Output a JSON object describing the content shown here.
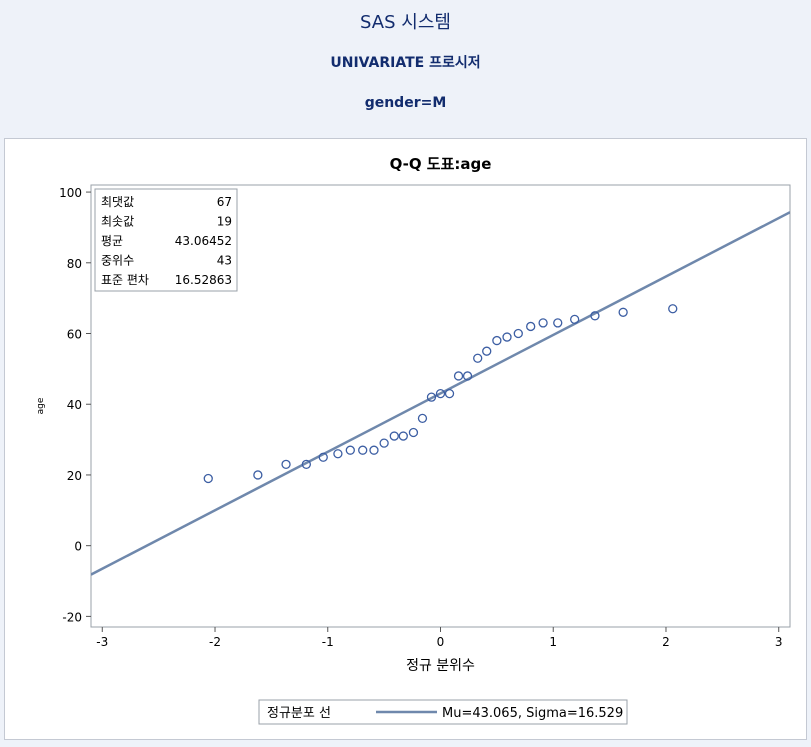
{
  "header": {
    "system": "SAS 시스템",
    "procedure": "UNIVARIATE 프로시저",
    "group": "gender=M"
  },
  "chart_data": {
    "type": "scatter",
    "title": "Q-Q 도표:age",
    "xlabel": "정규 분위수",
    "ylabel": "age",
    "xlim": [
      -3.1,
      3.1
    ],
    "ylim": [
      -23,
      102
    ],
    "xticks": [
      -3,
      -2,
      -1,
      0,
      1,
      2,
      3
    ],
    "yticks": [
      -20,
      0,
      20,
      40,
      60,
      80,
      100
    ],
    "points": [
      [
        -2.06,
        19
      ],
      [
        -1.62,
        20
      ],
      [
        -1.37,
        23
      ],
      [
        -1.19,
        23
      ],
      [
        -1.04,
        25
      ],
      [
        -0.91,
        26
      ],
      [
        -0.8,
        27
      ],
      [
        -0.69,
        27
      ],
      [
        -0.59,
        27
      ],
      [
        -0.5,
        29
      ],
      [
        -0.41,
        31
      ],
      [
        -0.33,
        31
      ],
      [
        -0.24,
        32
      ],
      [
        -0.16,
        36
      ],
      [
        -0.08,
        42
      ],
      [
        0.0,
        43
      ],
      [
        0.08,
        43
      ],
      [
        0.16,
        48
      ],
      [
        0.24,
        48
      ],
      [
        0.33,
        53
      ],
      [
        0.41,
        55
      ],
      [
        0.5,
        58
      ],
      [
        0.59,
        59
      ],
      [
        0.69,
        60
      ],
      [
        0.8,
        62
      ],
      [
        0.91,
        63
      ],
      [
        1.04,
        63
      ],
      [
        1.19,
        64
      ],
      [
        1.37,
        65
      ],
      [
        1.62,
        66
      ],
      [
        2.06,
        67
      ]
    ],
    "reference_line": {
      "mu": 43.065,
      "sigma": 16.529
    },
    "stats": [
      {
        "label": "최댓값",
        "value": "67"
      },
      {
        "label": "최솟값",
        "value": "19"
      },
      {
        "label": "평균",
        "value": "43.06452"
      },
      {
        "label": "중위수",
        "value": "43"
      },
      {
        "label": "표준 편차",
        "value": "16.52863"
      }
    ],
    "legend": {
      "label": "정규분포 선",
      "entry": "Mu=43.065, Sigma=16.529",
      "position": "bottom"
    },
    "colors": {
      "marker": "#3c5ea3",
      "line": "#6f88ac",
      "text": "#000000"
    }
  }
}
